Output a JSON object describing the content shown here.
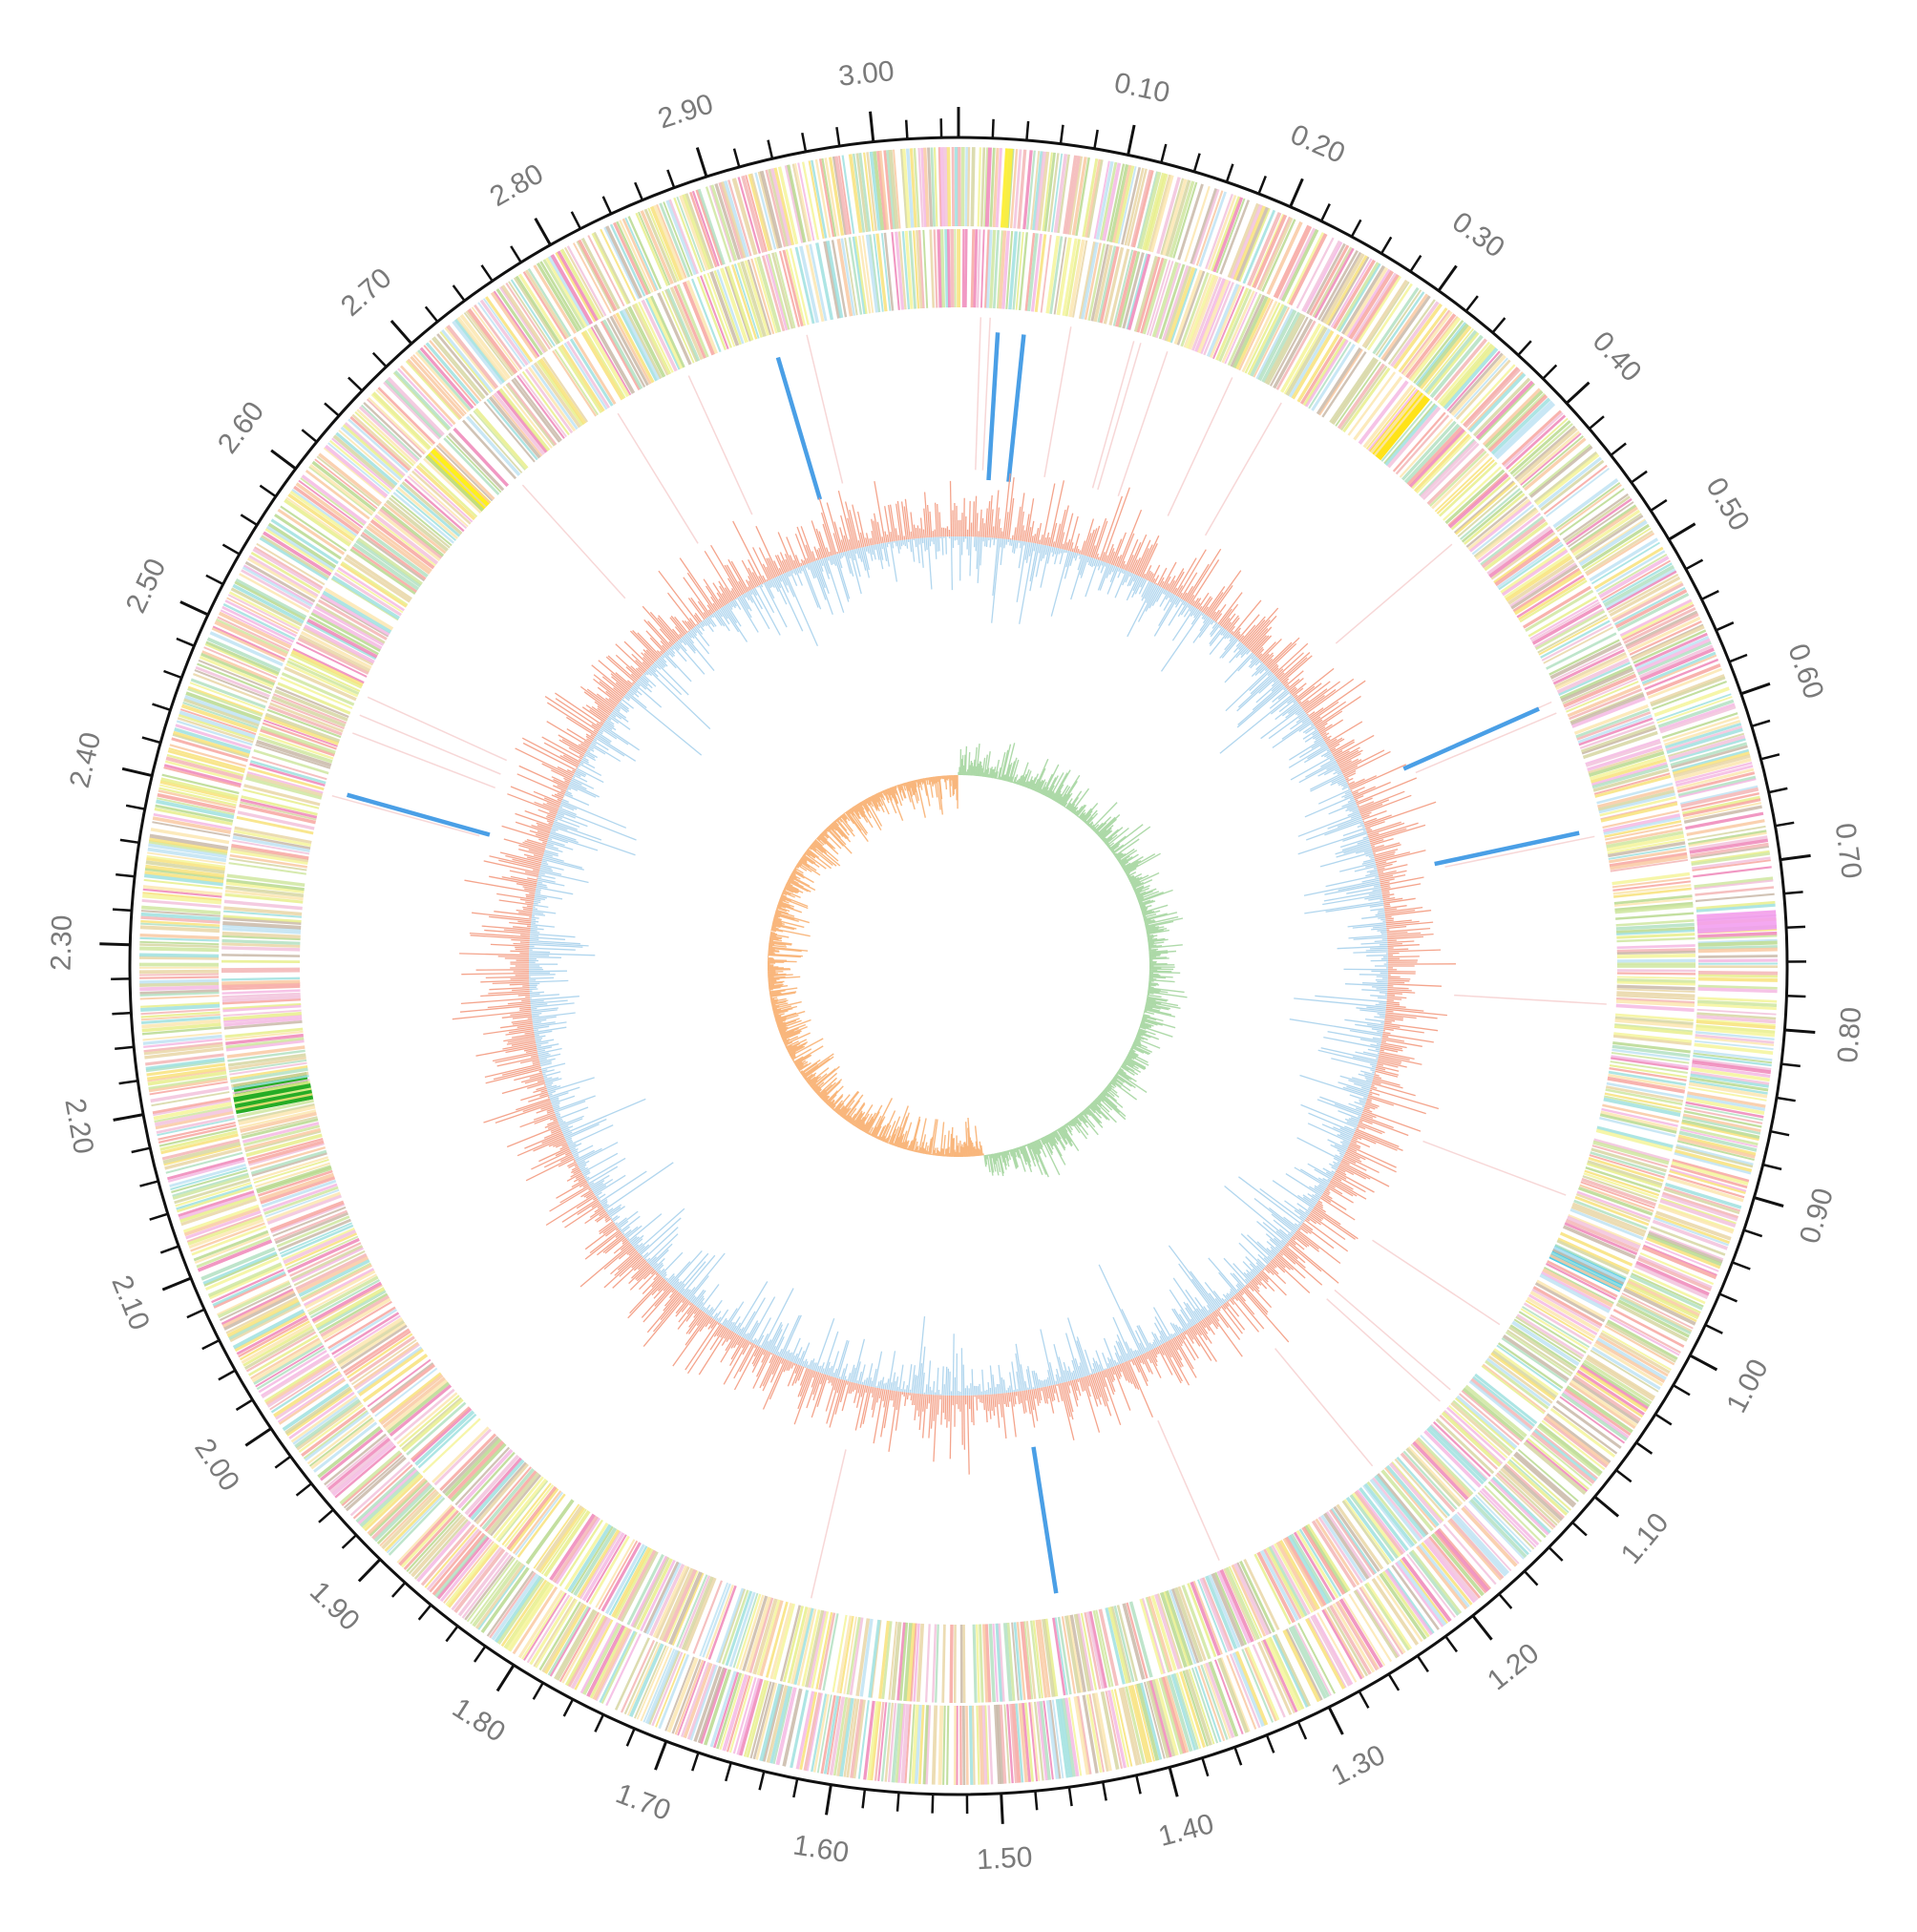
{
  "chart_data": {
    "type": "circular-genome-map",
    "scale_max": 3.05,
    "major_ticks": [
      0.1,
      0.2,
      0.3,
      0.4,
      0.5,
      0.6,
      0.7,
      0.8,
      0.9,
      1.0,
      1.1,
      1.2,
      1.3,
      1.4,
      1.5,
      1.6,
      1.7,
      1.8,
      1.9,
      2.0,
      2.1,
      2.2,
      2.3,
      2.4,
      2.5,
      2.6,
      2.7,
      2.8,
      2.9,
      3.0
    ],
    "tick_labels": [
      "0.10",
      "0.20",
      "0.30",
      "0.40",
      "0.50",
      "0.60",
      "0.70",
      "0.80",
      "0.90",
      "1.00",
      "1.10",
      "1.20",
      "1.30",
      "1.40",
      "1.50",
      "1.60",
      "1.70",
      "1.80",
      "1.90",
      "2.00",
      "2.10",
      "2.20",
      "2.30",
      "2.40",
      "2.50",
      "2.60",
      "2.70",
      "2.80",
      "2.90",
      "3.00"
    ],
    "minor_tick_step": 0.02,
    "rrna_positions": [
      0.03,
      0.05,
      0.56,
      0.66,
      1.45,
      2.42,
      2.91
    ],
    "colors": {
      "axis": "#111111",
      "rrna": "#4a9fe6",
      "gc_content_positive": "#f39a80",
      "gc_content_negative": "#a9d1ec",
      "gc_skew_positive": "#a6d6a1",
      "gc_skew_negative": "#f8b173",
      "highlight_green": "#1aa81a",
      "highlight_pink": "#f39ef0"
    },
    "cog_palette": [
      "#f7a6a0",
      "#f5b8e3",
      "#f8e27a",
      "#cfe6a0",
      "#b9d98f",
      "#f9c9a2",
      "#f5f59a",
      "#9fe0df",
      "#c9b8a8",
      "#ee86b8",
      "#e9d6a6",
      "#f3b5b5",
      "#e8ef8c",
      "#bfe3f3",
      "#f2c2dc",
      "#d6d6a2",
      "#fbe6b0",
      "#b3e0c2"
    ]
  }
}
